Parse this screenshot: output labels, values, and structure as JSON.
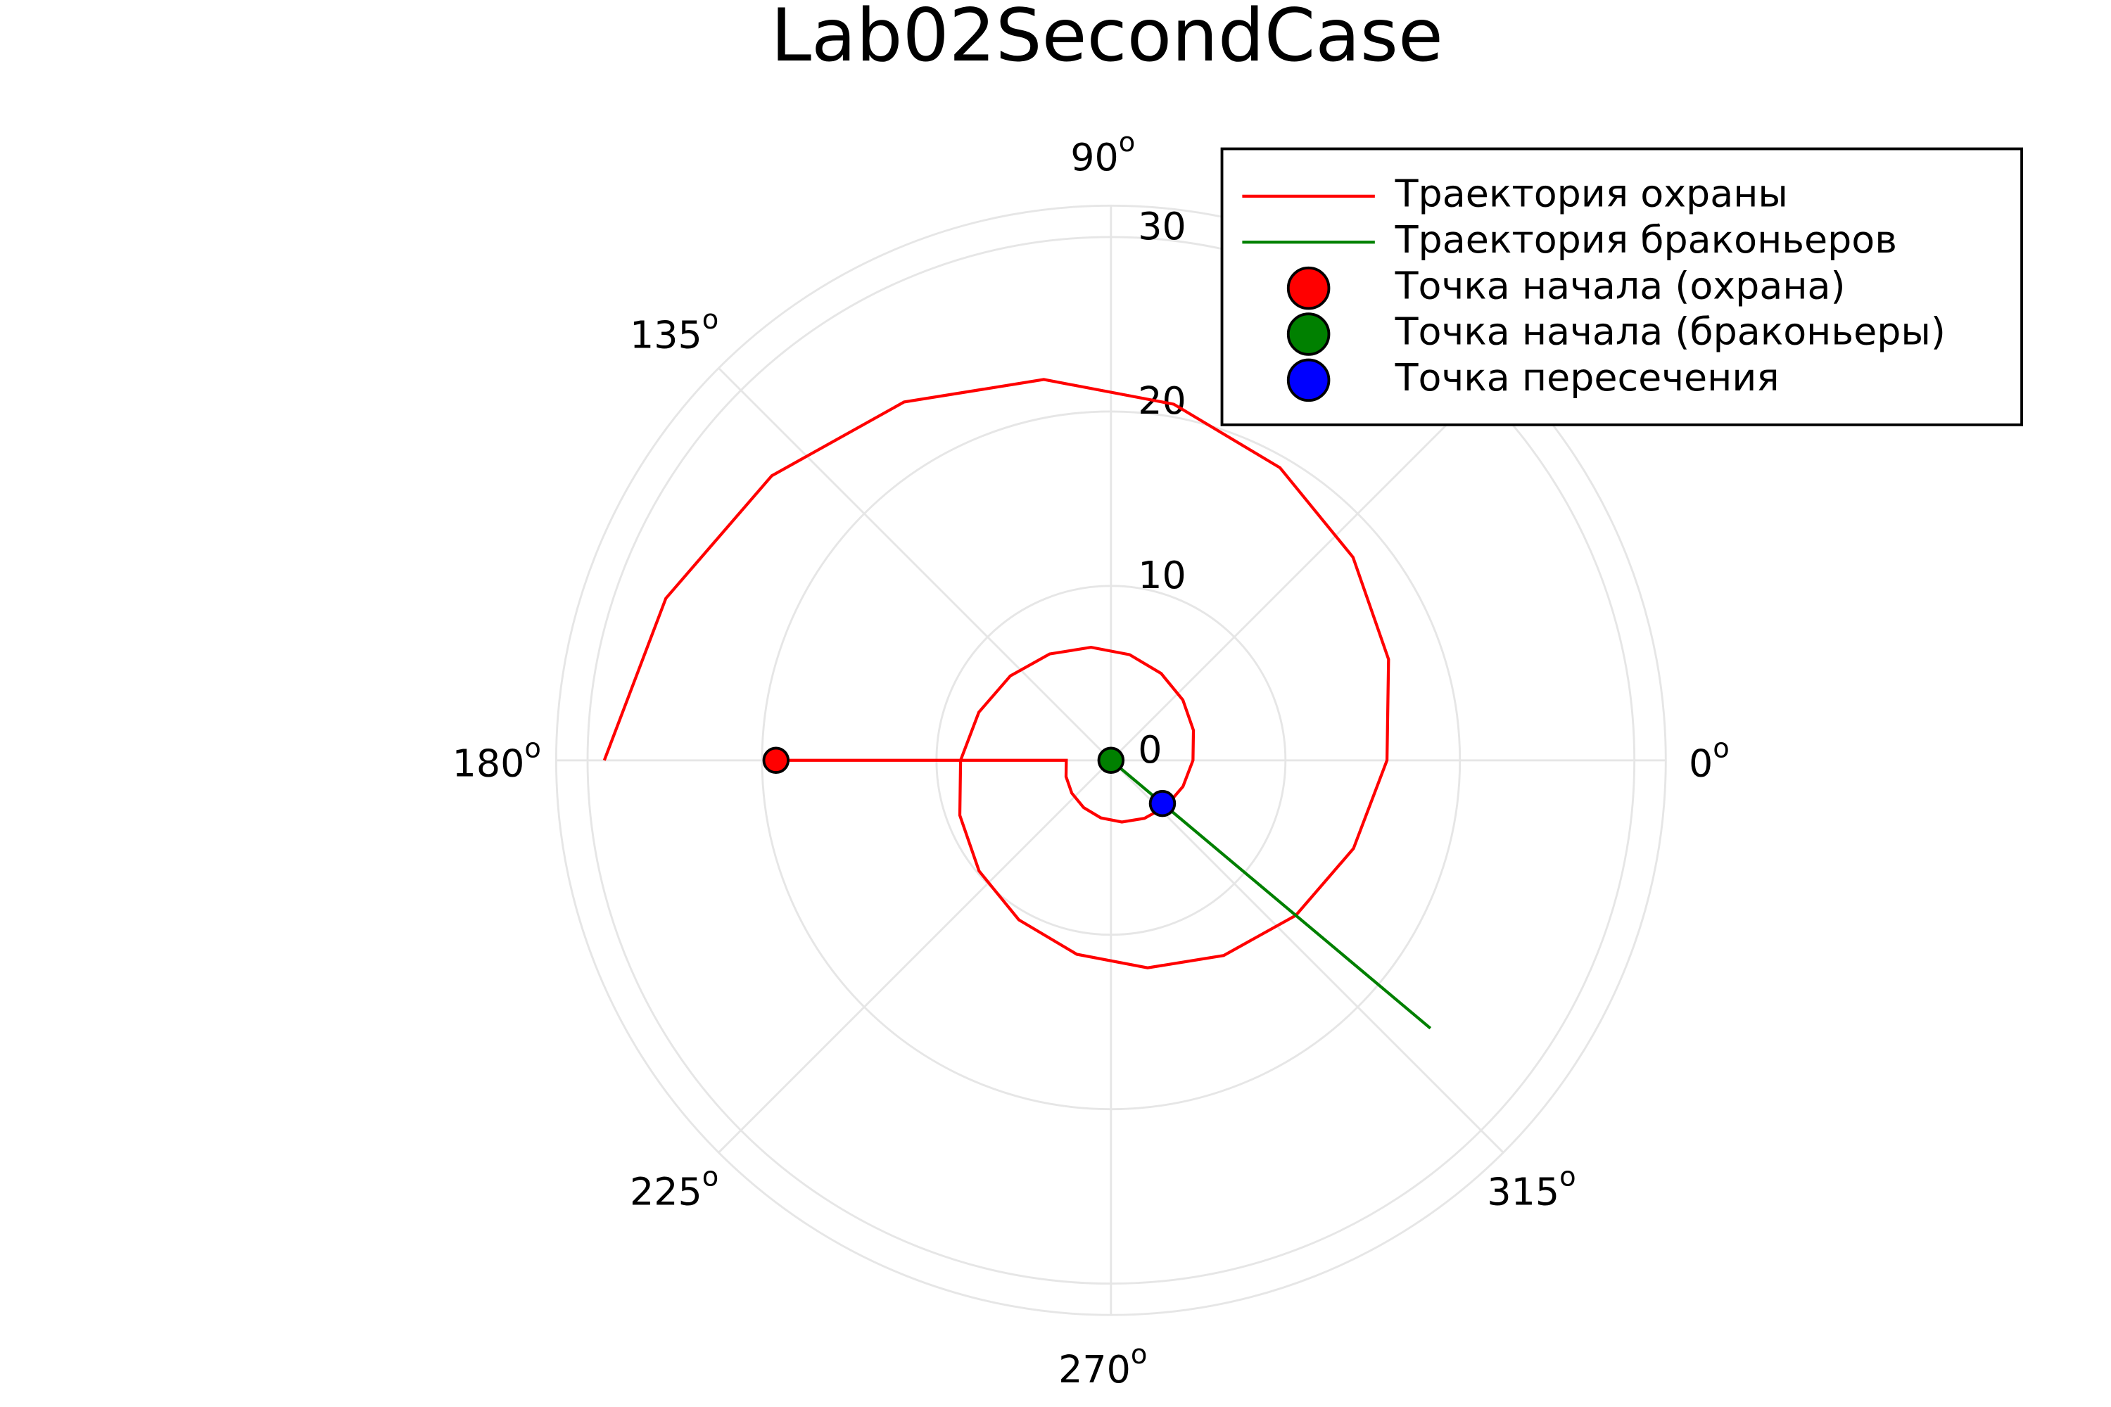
{
  "chart_data": {
    "type": "polar",
    "title": "Lab02SecondCase",
    "theta_ticks": [
      0,
      45,
      90,
      135,
      180,
      225,
      270,
      315
    ],
    "degree_mark": "o",
    "rlim": [
      0,
      31.8
    ],
    "rticks": [
      0,
      10,
      20,
      30
    ],
    "grid": true,
    "legend": "top-right",
    "series": [
      {
        "name": "Траектория охраны",
        "color": "#ff0000",
        "mode": "lines",
        "theta": [
          180,
          180,
          200,
          220,
          240,
          260,
          280,
          300,
          320,
          340,
          360,
          380,
          400,
          420,
          440,
          460,
          480,
          500,
          520,
          540,
          560,
          580,
          600,
          620,
          640,
          660,
          680,
          700,
          720,
          740,
          760,
          780,
          800,
          820,
          840,
          860,
          880,
          900
        ],
        "r": [
          19.2,
          2.56,
          2.74,
          2.93,
          3.13,
          3.35,
          3.59,
          3.84,
          4.11,
          4.39,
          4.7,
          5.03,
          5.38,
          5.75,
          6.15,
          6.58,
          7.04,
          7.53,
          8.06,
          8.62,
          9.22,
          9.87,
          10.56,
          11.29,
          12.08,
          12.92,
          13.83,
          14.79,
          15.82,
          16.93,
          18.11,
          19.37,
          20.73,
          22.17,
          23.72,
          25.38,
          27.15,
          29.04
        ]
      },
      {
        "name": "Траектория браконьеров",
        "color": "#008000",
        "mode": "lines",
        "theta": [
          320,
          320
        ],
        "r": [
          0,
          23.9
        ]
      },
      {
        "name": "Точка начала (охрана)",
        "color": "#ff0000",
        "mode": "markers",
        "theta": [
          180
        ],
        "r": [
          19.2
        ]
      },
      {
        "name": "Точка начала (браконьеры)",
        "color": "#008000",
        "mode": "markers",
        "theta": [
          0
        ],
        "r": [
          0
        ]
      },
      {
        "name": "Точка пересечения",
        "color": "#0000ff",
        "mode": "markers",
        "theta": [
          320
        ],
        "r": [
          3.85
        ]
      }
    ]
  }
}
